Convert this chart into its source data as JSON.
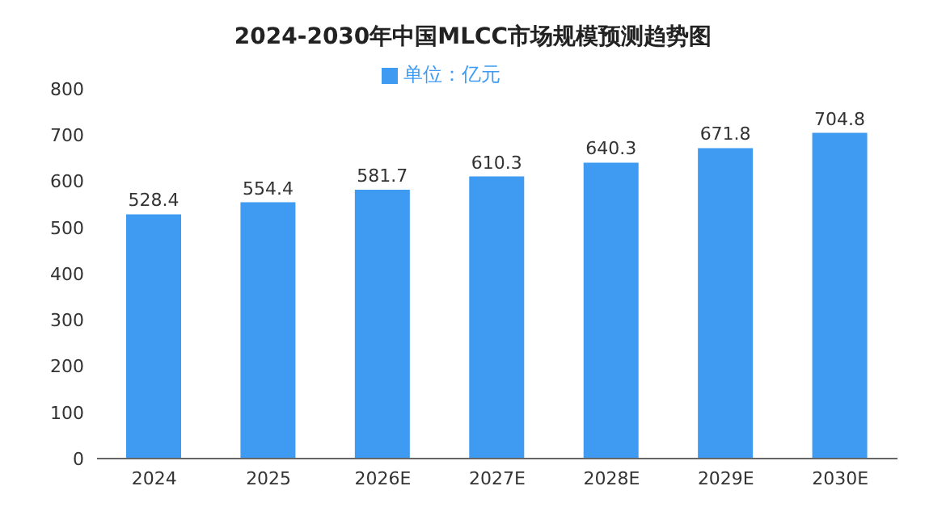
{
  "chart_data": {
    "type": "bar",
    "title": "2024-2030年中国MLCC市场规模预测趋势图",
    "categories": [
      "2024",
      "2025",
      "2026E",
      "2027E",
      "2028E",
      "2029E",
      "2030E"
    ],
    "series": [
      {
        "name": "单位：亿元",
        "color": "#3f9bf2",
        "values": [
          528.4,
          554.4,
          581.7,
          610.3,
          640.3,
          671.8,
          704.8
        ]
      }
    ],
    "ylim": [
      0,
      800
    ],
    "yticks": [
      0,
      100,
      200,
      300,
      400,
      500,
      600,
      700,
      800
    ],
    "data_labels": true,
    "legend": "top"
  }
}
